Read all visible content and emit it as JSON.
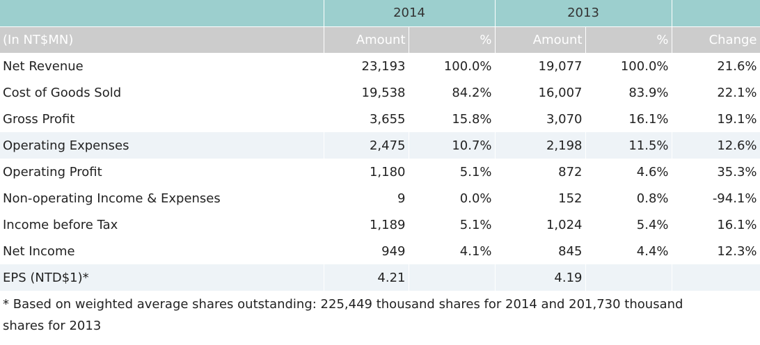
{
  "table": {
    "year_headers": [
      "",
      "2014",
      "2013",
      ""
    ],
    "sub_headers": [
      "(In NT$MN)",
      "Amount",
      "%",
      "Amount",
      "%",
      "Change"
    ],
    "rows": [
      {
        "label": "Net Revenue",
        "a2014": "23,193",
        "p2014": "100.0%",
        "a2013": "19,077",
        "p2013": "100.0%",
        "change": "21.6%"
      },
      {
        "label": "Cost of Goods Sold",
        "a2014": "19,538",
        "p2014": "84.2%",
        "a2013": "16,007",
        "p2013": "83.9%",
        "change": "22.1%"
      },
      {
        "label": "Gross Profit",
        "a2014": "3,655",
        "p2014": "15.8%",
        "a2013": "3,070",
        "p2013": "16.1%",
        "change": "19.1%"
      },
      {
        "label": "Operating Expenses",
        "a2014": "2,475",
        "p2014": "10.7%",
        "a2013": "2,198",
        "p2013": "11.5%",
        "change": "12.6%"
      },
      {
        "label": "Operating Profit",
        "a2014": "1,180",
        "p2014": "5.1%",
        "a2013": "872",
        "p2013": "4.6%",
        "change": "35.3%"
      },
      {
        "label": "Non-operating Income & Expenses",
        "a2014": "9",
        "p2014": "0.0%",
        "a2013": "152",
        "p2013": "0.8%",
        "change": "-94.1%"
      },
      {
        "label": "Income before Tax",
        "a2014": "1,189",
        "p2014": "5.1%",
        "a2013": "1,024",
        "p2013": "5.4%",
        "change": "16.1%"
      },
      {
        "label": "Net Income",
        "a2014": "949",
        "p2014": "4.1%",
        "a2013": "845",
        "p2013": "4.4%",
        "change": "12.3%"
      },
      {
        "label": "EPS (NTD$1)*",
        "a2014": "4.21",
        "p2014": "",
        "a2013": "4.19",
        "p2013": "",
        "change": ""
      }
    ]
  },
  "footnote": "* Based on weighted average shares outstanding: 225,449 thousand shares for 2014 and 201,730 thousand shares for 2013",
  "colors": {
    "header_teal": "#9ccfce",
    "subheader_gray": "#cccccc",
    "row_shade": "#eef3f7"
  }
}
